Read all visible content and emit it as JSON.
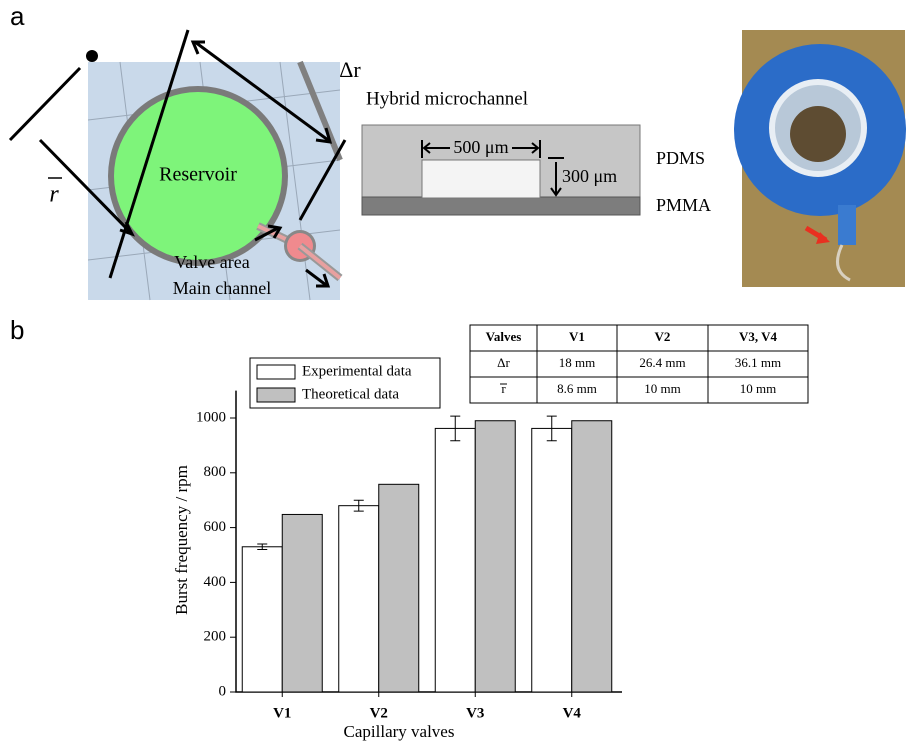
{
  "panel_labels": [
    "a",
    "b"
  ],
  "diagram": {
    "reservoir": "Reservoir",
    "delta_r": "Δr",
    "r_bar": "r",
    "valve_area": "Valve area",
    "main_channel": "Main channel"
  },
  "cross_section": {
    "title": "Hybrid microchannel",
    "width": "500 μm",
    "height": "300 μm",
    "top_layer": "PDMS",
    "bottom_layer": "PMMA"
  },
  "table": {
    "header": [
      "Valves",
      "V1",
      "V2",
      "V3, V4"
    ],
    "rows": [
      [
        "Δr",
        "18 mm",
        "26.4 mm",
        "36.1 mm"
      ],
      [
        "r",
        "8.6 mm",
        "10 mm",
        "10 mm"
      ]
    ]
  },
  "chart_data": {
    "type": "bar",
    "xlabel": "Capillary valves",
    "ylabel": "Burst frequency / rpm",
    "categories": [
      "V1",
      "V2",
      "V3",
      "V4"
    ],
    "series": [
      {
        "name": "Experimental data",
        "color": "#ffffff",
        "values": [
          530,
          680,
          962,
          962
        ],
        "errors": [
          10,
          20,
          45,
          45
        ]
      },
      {
        "name": "Theoretical data",
        "color": "#c0c0c0",
        "values": [
          648,
          758,
          990,
          990
        ]
      }
    ],
    "ylim": [
      0,
      1100
    ],
    "yticks": [
      0,
      200,
      400,
      600,
      800,
      1000
    ],
    "legend": "upper left"
  }
}
